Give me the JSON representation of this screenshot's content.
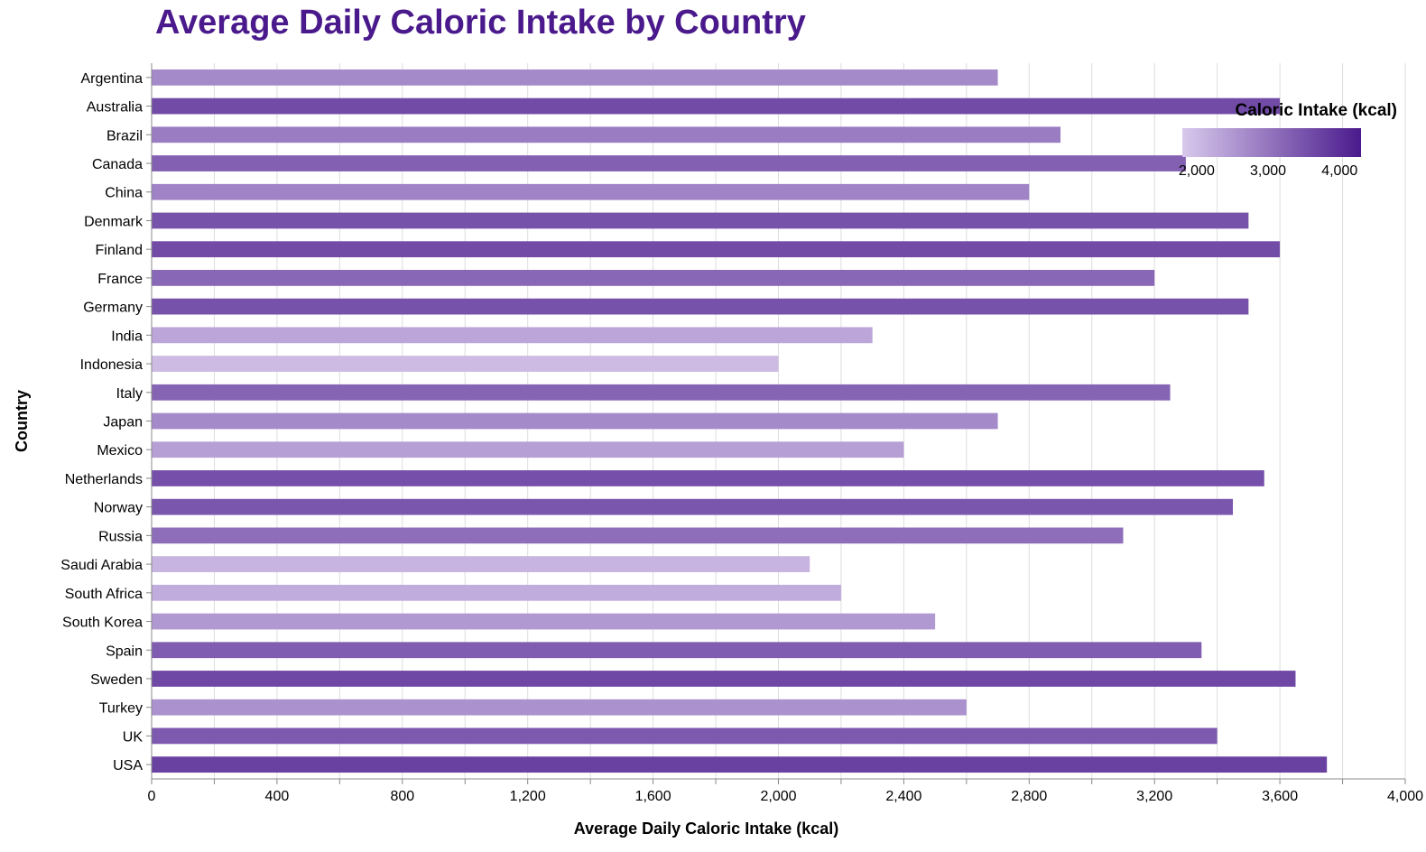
{
  "chart_data": {
    "type": "bar",
    "orientation": "horizontal",
    "title": "Average Daily Caloric Intake by Country",
    "xlabel": "Average Daily Caloric Intake (kcal)",
    "ylabel": "Country",
    "xlim": [
      0,
      4000
    ],
    "x_ticks": [
      0,
      400,
      800,
      1200,
      1600,
      2000,
      2400,
      2800,
      3200,
      3600,
      4000
    ],
    "x_tick_labels": [
      "0",
      "400",
      "800",
      "1,200",
      "1,600",
      "2,000",
      "2,400",
      "2,800",
      "3,200",
      "3,600",
      "4,000"
    ],
    "grid": true,
    "categories": [
      "Argentina",
      "Australia",
      "Brazil",
      "Canada",
      "China",
      "Denmark",
      "Finland",
      "France",
      "Germany",
      "India",
      "Indonesia",
      "Italy",
      "Japan",
      "Mexico",
      "Netherlands",
      "Norway",
      "Russia",
      "Saudi Arabia",
      "South Africa",
      "South Korea",
      "Spain",
      "Sweden",
      "Turkey",
      "UK",
      "USA"
    ],
    "values": [
      2700,
      3600,
      2900,
      3300,
      2800,
      3500,
      3600,
      3200,
      3500,
      2300,
      2000,
      3250,
      2700,
      2400,
      3550,
      3450,
      3100,
      2100,
      2200,
      2500,
      3350,
      3650,
      2600,
      3400,
      3750
    ],
    "legend": {
      "title": "Caloric Intake (kcal)",
      "placement": "top-right",
      "domain": [
        1800,
        4300
      ],
      "ticks": [
        2000,
        3000,
        4000
      ],
      "tick_labels": [
        "2,000",
        "3,000",
        "4,000"
      ],
      "color_low": "#d8c9ec",
      "color_high": "#4a1a8c"
    }
  }
}
